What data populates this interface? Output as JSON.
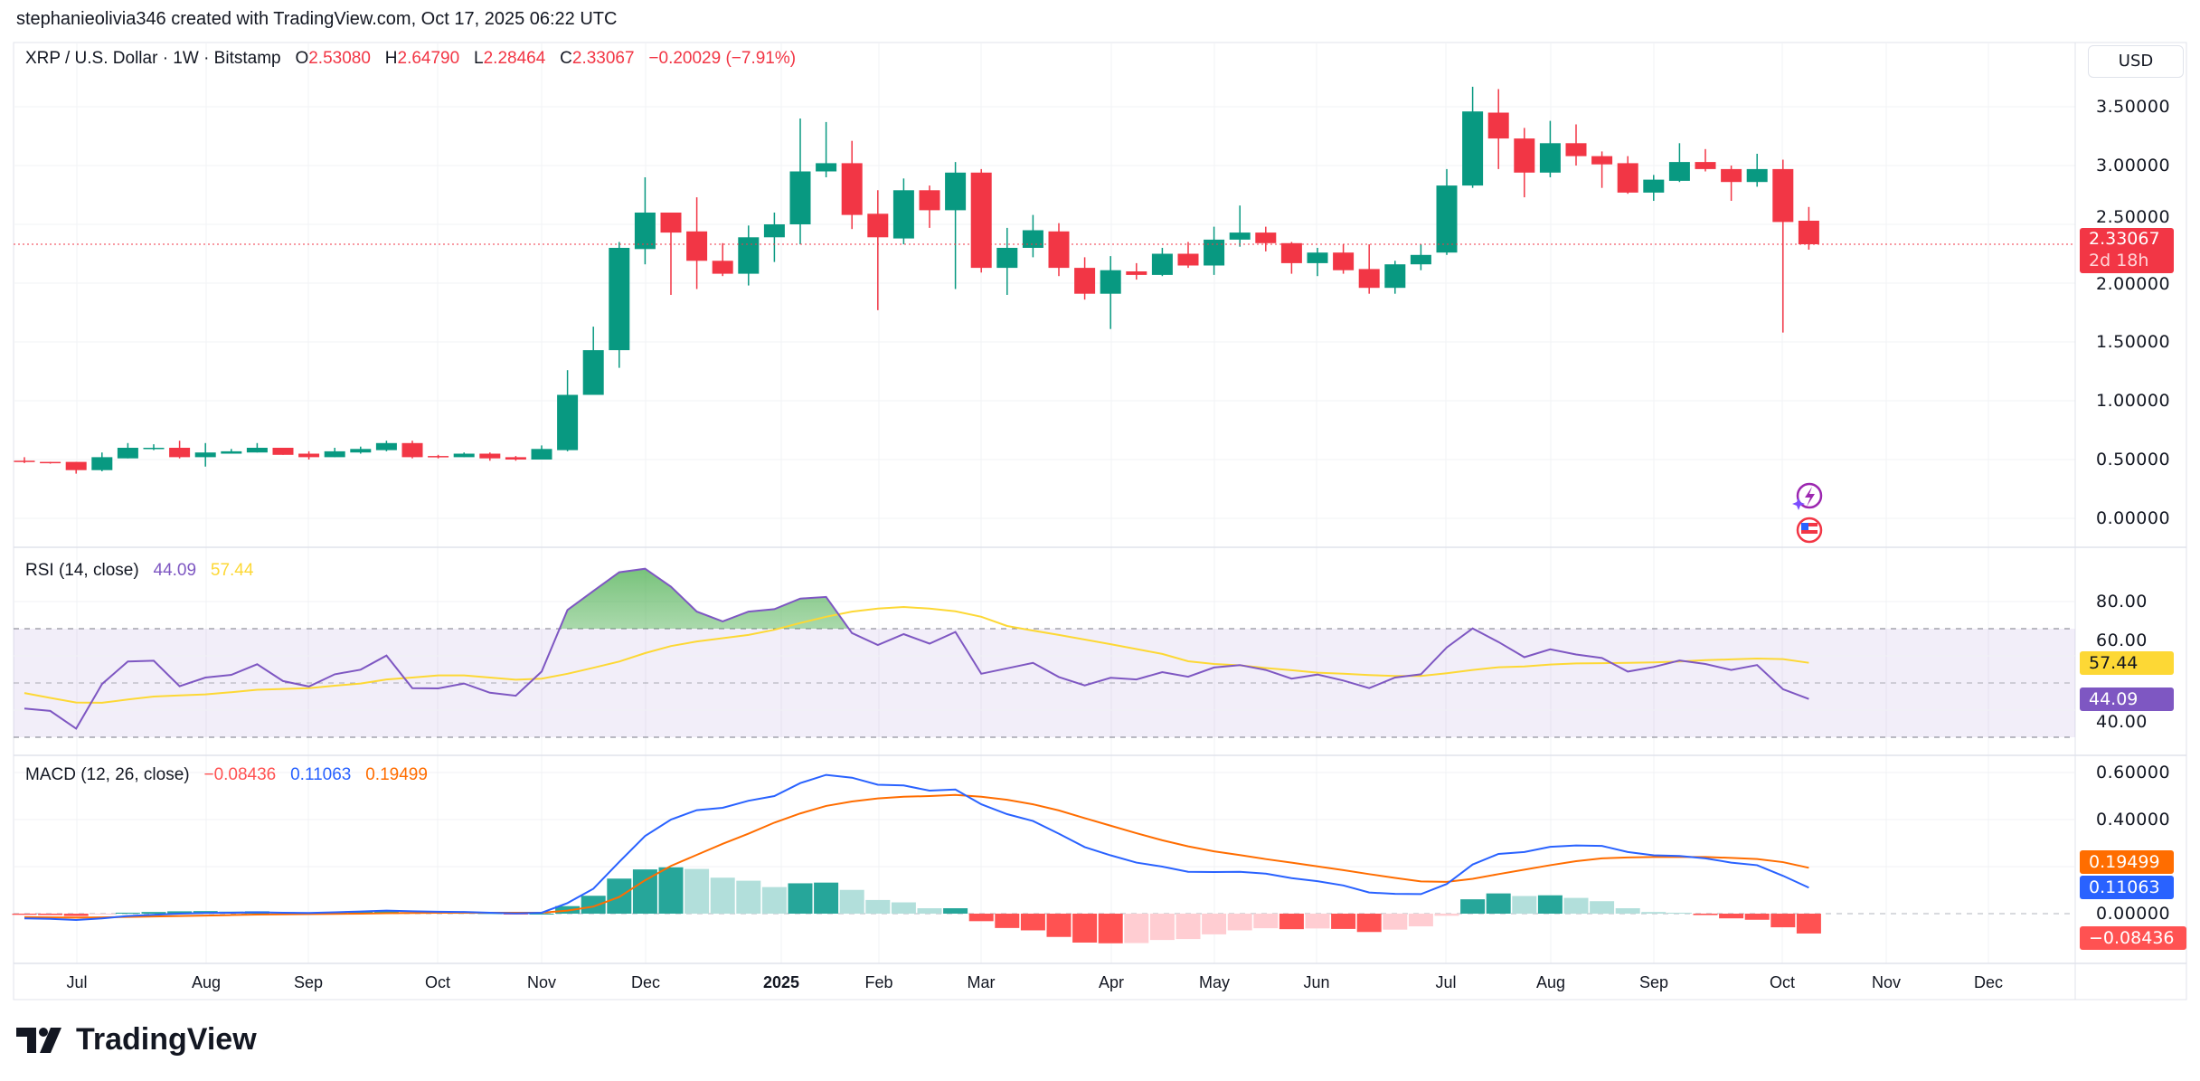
{
  "header": {
    "attribution": "stephanieolivia346 created with TradingView.com, Oct 17, 2025 06:22 UTC"
  },
  "legend": {
    "symbol": "XRP / U.S. Dollar · 1W · Bitstamp",
    "o_label": "O",
    "open": "2.53080",
    "h_label": "H",
    "high": "2.64790",
    "l_label": "L",
    "low": "2.28464",
    "c_label": "C",
    "close": "2.33067",
    "change": "−0.20029 (−7.91%)"
  },
  "currency_button": "USD",
  "price_axis": {
    "ticks": [
      "3.50000",
      "3.00000",
      "2.50000",
      "2.00000",
      "1.50000",
      "1.00000",
      "0.50000",
      "0.00000"
    ],
    "last_price": "2.33067",
    "countdown": "2d 18h"
  },
  "rsi": {
    "title": "RSI (14, close)",
    "value": "44.09",
    "ma_value": "57.44",
    "ticks": [
      "80.00",
      "60.00",
      "40.00"
    ]
  },
  "macd": {
    "title": "MACD (12, 26, close)",
    "hist": "−0.08436",
    "macd": "0.11063",
    "signal": "0.19499",
    "ticks": [
      "0.60000",
      "0.40000",
      "0.00000"
    ]
  },
  "time_axis": {
    "labels": [
      "Jul",
      "Aug",
      "Sep",
      "Oct",
      "Nov",
      "Dec",
      "2025",
      "Feb",
      "Mar",
      "Apr",
      "May",
      "Jun",
      "Jul",
      "Aug",
      "Sep",
      "Oct",
      "Nov",
      "Dec"
    ]
  },
  "events": [
    "lightning-event-icon",
    "us-flag-event-icon"
  ],
  "logo": "TradingView",
  "colors": {
    "up": "#089981",
    "down": "#f23645",
    "rsi": "#7e57c2",
    "rsi_ma": "#fdd835",
    "macd": "#2962ff",
    "signal": "#ff6d00",
    "hist_up": "#26a69a",
    "hist_up_light": "#b2dfdb",
    "hist_down": "#ff5252",
    "hist_down_light": "#ffcdd2"
  },
  "chart_data": {
    "type": "candlestick",
    "title": "XRP / U.S. Dollar · 1W · Bitstamp",
    "ylim": [
      0,
      3.5
    ],
    "ohlc": [
      [
        0.49,
        0.52,
        0.47,
        0.48
      ],
      [
        0.48,
        0.48,
        0.465,
        0.475
      ],
      [
        0.48,
        0.48,
        0.38,
        0.41
      ],
      [
        0.41,
        0.56,
        0.4,
        0.52
      ],
      [
        0.51,
        0.64,
        0.51,
        0.6
      ],
      [
        0.59,
        0.63,
        0.58,
        0.6
      ],
      [
        0.6,
        0.66,
        0.51,
        0.52
      ],
      [
        0.52,
        0.64,
        0.44,
        0.56
      ],
      [
        0.55,
        0.59,
        0.55,
        0.57
      ],
      [
        0.56,
        0.64,
        0.56,
        0.6
      ],
      [
        0.6,
        0.6,
        0.54,
        0.54
      ],
      [
        0.55,
        0.57,
        0.5,
        0.52
      ],
      [
        0.52,
        0.6,
        0.52,
        0.57
      ],
      [
        0.56,
        0.61,
        0.55,
        0.59
      ],
      [
        0.58,
        0.66,
        0.57,
        0.64
      ],
      [
        0.64,
        0.66,
        0.51,
        0.52
      ],
      [
        0.53,
        0.54,
        0.51,
        0.52
      ],
      [
        0.52,
        0.56,
        0.52,
        0.55
      ],
      [
        0.55,
        0.56,
        0.49,
        0.51
      ],
      [
        0.52,
        0.53,
        0.49,
        0.5
      ],
      [
        0.5,
        0.62,
        0.5,
        0.59
      ],
      [
        0.58,
        1.26,
        0.57,
        1.05
      ],
      [
        1.05,
        1.63,
        1.05,
        1.43
      ],
      [
        1.43,
        2.35,
        1.28,
        2.3
      ],
      [
        2.29,
        2.9,
        2.16,
        2.6
      ],
      [
        2.6,
        2.6,
        1.9,
        2.43
      ],
      [
        2.44,
        2.73,
        1.95,
        2.19
      ],
      [
        2.19,
        2.34,
        2.06,
        2.08
      ],
      [
        2.08,
        2.49,
        1.98,
        2.39
      ],
      [
        2.39,
        2.6,
        2.18,
        2.5
      ],
      [
        2.5,
        3.4,
        2.33,
        2.95
      ],
      [
        2.95,
        3.37,
        2.9,
        3.02
      ],
      [
        3.02,
        3.21,
        2.46,
        2.58
      ],
      [
        2.59,
        2.79,
        1.77,
        2.39
      ],
      [
        2.38,
        2.89,
        2.33,
        2.79
      ],
      [
        2.79,
        2.83,
        2.47,
        2.62
      ],
      [
        2.62,
        3.03,
        1.95,
        2.94
      ],
      [
        2.94,
        2.97,
        2.09,
        2.13
      ],
      [
        2.13,
        2.47,
        1.9,
        2.3
      ],
      [
        2.3,
        2.58,
        2.22,
        2.45
      ],
      [
        2.44,
        2.51,
        2.06,
        2.13
      ],
      [
        2.13,
        2.22,
        1.86,
        1.91
      ],
      [
        1.91,
        2.23,
        1.61,
        2.11
      ],
      [
        2.1,
        2.17,
        2.03,
        2.07
      ],
      [
        2.07,
        2.3,
        2.06,
        2.25
      ],
      [
        2.25,
        2.35,
        2.13,
        2.15
      ],
      [
        2.15,
        2.48,
        2.07,
        2.37
      ],
      [
        2.37,
        2.66,
        2.31,
        2.43
      ],
      [
        2.43,
        2.48,
        2.27,
        2.34
      ],
      [
        2.34,
        2.35,
        2.08,
        2.17
      ],
      [
        2.17,
        2.3,
        2.06,
        2.26
      ],
      [
        2.26,
        2.33,
        2.08,
        2.11
      ],
      [
        2.12,
        2.33,
        1.91,
        1.96
      ],
      [
        1.96,
        2.19,
        1.91,
        2.16
      ],
      [
        2.16,
        2.33,
        2.11,
        2.24
      ],
      [
        2.26,
        2.97,
        2.24,
        2.83
      ],
      [
        2.83,
        3.67,
        2.81,
        3.46
      ],
      [
        3.45,
        3.65,
        2.97,
        3.23
      ],
      [
        3.23,
        3.32,
        2.73,
        2.94
      ],
      [
        2.94,
        3.38,
        2.9,
        3.19
      ],
      [
        3.19,
        3.35,
        3.0,
        3.08
      ],
      [
        3.08,
        3.12,
        2.81,
        3.01
      ],
      [
        3.02,
        3.08,
        2.76,
        2.77
      ],
      [
        2.77,
        2.92,
        2.7,
        2.88
      ],
      [
        2.87,
        3.19,
        2.86,
        3.03
      ],
      [
        3.03,
        3.14,
        2.95,
        2.97
      ],
      [
        2.97,
        3.0,
        2.7,
        2.86
      ],
      [
        2.86,
        3.1,
        2.82,
        2.97
      ],
      [
        2.97,
        3.05,
        1.58,
        2.52
      ],
      [
        2.5308,
        2.6479,
        2.28464,
        2.33067
      ]
    ],
    "rsi": [
      40.6,
      39.7,
      33.2,
      49.6,
      57.9,
      58.2,
      48.8,
      52.0,
      53.0,
      56.9,
      50.7,
      48.7,
      53.2,
      54.9,
      60.1,
      48.1,
      48.0,
      49.8,
      46.4,
      45.3,
      54.2,
      76.9,
      83.9,
      90.8,
      92.1,
      85.5,
      76.3,
      72.7,
      76.3,
      77.2,
      81.1,
      81.7,
      68.4,
      64.0,
      68.0,
      64.5,
      68.8,
      53.4,
      55.4,
      57.4,
      52.2,
      49.1,
      51.9,
      51.3,
      54.0,
      52.3,
      55.7,
      56.6,
      54.8,
      51.6,
      53.1,
      50.9,
      48.1,
      52.0,
      53.2,
      63.1,
      70.1,
      65.1,
      59.5,
      62.4,
      60.5,
      59.2,
      54.2,
      55.9,
      58.3,
      57.0,
      54.8,
      56.6,
      47.7,
      44.09
    ],
    "rsi_ma": [
      46.3,
      44.5,
      42.8,
      42.7,
      43.9,
      45.0,
      45.4,
      45.8,
      46.6,
      47.5,
      47.8,
      48.1,
      49.0,
      49.8,
      51.3,
      52.0,
      52.8,
      52.8,
      52.0,
      51.2,
      51.6,
      53.4,
      55.6,
      57.9,
      61.0,
      63.6,
      65.3,
      66.5,
      67.7,
      69.6,
      72.1,
      74.4,
      76.3,
      77.4,
      78.0,
      77.4,
      76.4,
      74.4,
      71.0,
      69.3,
      67.7,
      66.0,
      64.3,
      62.5,
      60.7,
      58.0,
      57.0,
      56.5,
      55.5,
      54.7,
      53.8,
      53.4,
      52.9,
      52.6,
      52.6,
      53.6,
      54.8,
      55.8,
      56.1,
      56.8,
      57.2,
      57.3,
      57.4,
      57.6,
      57.9,
      58.4,
      58.7,
      59.0,
      58.8,
      57.44
    ],
    "rsi_levels": [
      70,
      50,
      30
    ],
    "macd_line": [
      -0.02,
      -0.022,
      -0.027,
      -0.02,
      -0.01,
      -0.005,
      0.0,
      0.003,
      0.004,
      0.006,
      0.004,
      0.003,
      0.006,
      0.009,
      0.013,
      0.01,
      0.008,
      0.007,
      0.004,
      0.001,
      0.004,
      0.045,
      0.106,
      0.22,
      0.33,
      0.4,
      0.44,
      0.45,
      0.48,
      0.5,
      0.555,
      0.59,
      0.578,
      0.548,
      0.545,
      0.523,
      0.528,
      0.465,
      0.423,
      0.394,
      0.34,
      0.283,
      0.248,
      0.217,
      0.2,
      0.178,
      0.177,
      0.178,
      0.17,
      0.151,
      0.138,
      0.12,
      0.09,
      0.084,
      0.083,
      0.126,
      0.209,
      0.254,
      0.262,
      0.284,
      0.29,
      0.288,
      0.262,
      0.248,
      0.245,
      0.235,
      0.217,
      0.206,
      0.161,
      0.11063
    ],
    "signal_line": [
      -0.015,
      -0.016,
      -0.017,
      -0.016,
      -0.014,
      -0.012,
      -0.01,
      -0.008,
      -0.006,
      -0.004,
      -0.003,
      -0.002,
      -0.001,
      0.0,
      0.002,
      0.003,
      0.004,
      0.004,
      0.004,
      0.004,
      0.004,
      0.013,
      0.03,
      0.071,
      0.142,
      0.203,
      0.25,
      0.297,
      0.34,
      0.387,
      0.426,
      0.458,
      0.477,
      0.49,
      0.497,
      0.5,
      0.505,
      0.497,
      0.484,
      0.465,
      0.439,
      0.406,
      0.374,
      0.342,
      0.312,
      0.286,
      0.265,
      0.249,
      0.232,
      0.217,
      0.201,
      0.185,
      0.168,
      0.152,
      0.137,
      0.135,
      0.148,
      0.168,
      0.187,
      0.206,
      0.223,
      0.235,
      0.239,
      0.241,
      0.241,
      0.241,
      0.237,
      0.232,
      0.219,
      0.19499
    ],
    "histogram": [
      -0.005,
      -0.006,
      -0.01,
      -0.004,
      0.004,
      0.007,
      0.01,
      0.011,
      0.01,
      0.01,
      0.007,
      0.005,
      0.007,
      0.009,
      0.011,
      0.007,
      0.004,
      0.003,
      0.0,
      -0.003,
      0.0,
      0.032,
      0.076,
      0.149,
      0.188,
      0.197,
      0.19,
      0.153,
      0.14,
      0.113,
      0.129,
      0.132,
      0.101,
      0.058,
      0.048,
      0.023,
      0.023,
      -0.032,
      -0.061,
      -0.071,
      -0.099,
      -0.123,
      -0.126,
      -0.125,
      -0.112,
      -0.108,
      -0.088,
      -0.071,
      -0.062,
      -0.066,
      -0.063,
      -0.065,
      -0.078,
      -0.068,
      -0.054,
      -0.009,
      0.061,
      0.086,
      0.075,
      0.078,
      0.067,
      0.053,
      0.023,
      0.007,
      0.004,
      -0.006,
      -0.02,
      -0.026,
      -0.058,
      -0.08436
    ]
  }
}
